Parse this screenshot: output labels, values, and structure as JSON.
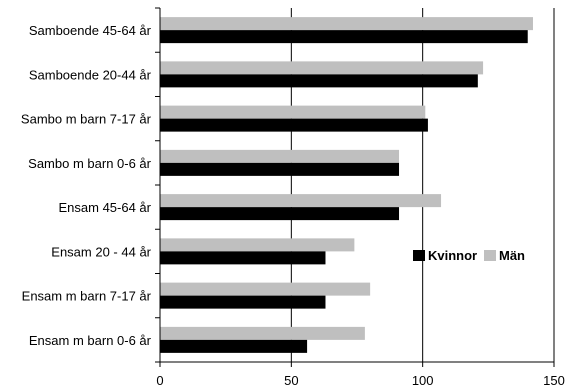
{
  "chart_data": {
    "type": "bar",
    "orientation": "horizontal",
    "categories": [
      "Samboende 45-64 år",
      "Samboende 20-44 år",
      "Sambo m barn 7-17 år",
      "Sambo m barn 0-6 år",
      "Ensam 45-64 år",
      "Ensam 20 - 44 år",
      "Ensam m barn 7-17 år",
      "Ensam m barn 0-6 år"
    ],
    "series": [
      {
        "name": "Män",
        "color": "#bfbfbf",
        "values": [
          142,
          123,
          101,
          91,
          107,
          74,
          80,
          78
        ]
      },
      {
        "name": "Kvinnor",
        "color": "#000000",
        "values": [
          140,
          121,
          102,
          91,
          91,
          63,
          63,
          56
        ]
      }
    ],
    "xlim": [
      0,
      150
    ],
    "xticks": [
      0,
      50,
      100,
      150
    ],
    "grid": "vertical at x ticks",
    "legend": {
      "placement": "right-middle",
      "order": [
        "Kvinnor",
        "Män"
      ]
    },
    "title": "",
    "xlabel": "",
    "ylabel": ""
  }
}
